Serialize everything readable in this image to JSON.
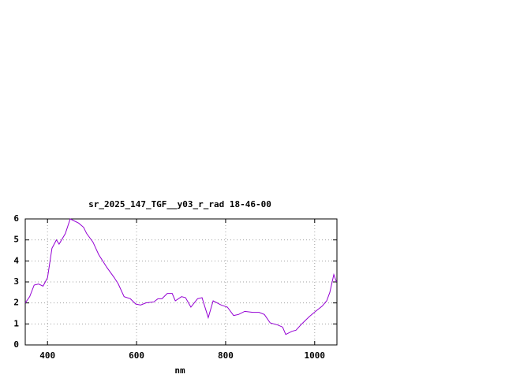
{
  "chart_data": {
    "type": "line",
    "title": "sr_2025_147_TGF__y03_r_rad 18-46-00",
    "x_label": "nm",
    "x": [
      350,
      360,
      370,
      380,
      390,
      400,
      410,
      420,
      426,
      440,
      451,
      470,
      481,
      488,
      502,
      515,
      533,
      550,
      559,
      572,
      586,
      598,
      609,
      621,
      639,
      648,
      657,
      669,
      680,
      687,
      701,
      710,
      722,
      737,
      747,
      761,
      772,
      790,
      804,
      818,
      829,
      843,
      861,
      875,
      887,
      900,
      917,
      928,
      935,
      949,
      958,
      971,
      988,
      1002,
      1017,
      1027,
      1034,
      1043,
      1049
    ],
    "series": [
      {
        "color": "#9400d3",
        "values": [
          2.0,
          2.3,
          2.85,
          2.9,
          2.8,
          3.2,
          4.6,
          5.0,
          4.8,
          5.3,
          6.0,
          5.8,
          5.6,
          5.3,
          4.9,
          4.3,
          3.7,
          3.2,
          2.9,
          2.3,
          2.2,
          1.95,
          1.9,
          2.0,
          2.05,
          2.2,
          2.2,
          2.45,
          2.45,
          2.1,
          2.3,
          2.25,
          1.8,
          2.2,
          2.25,
          1.3,
          2.1,
          1.9,
          1.8,
          1.4,
          1.45,
          1.6,
          1.55,
          1.55,
          1.45,
          1.05,
          0.95,
          0.85,
          0.5,
          0.65,
          0.7,
          1.0,
          1.35,
          1.6,
          1.85,
          2.1,
          2.5,
          3.35,
          3.0
        ]
      }
    ],
    "xlim": [
      350,
      1050
    ],
    "ylim": [
      0,
      6
    ],
    "xticks": [
      400,
      600,
      800,
      1000
    ],
    "yticks": [
      0,
      1,
      2,
      3,
      4,
      5,
      6
    ],
    "grid": true
  }
}
